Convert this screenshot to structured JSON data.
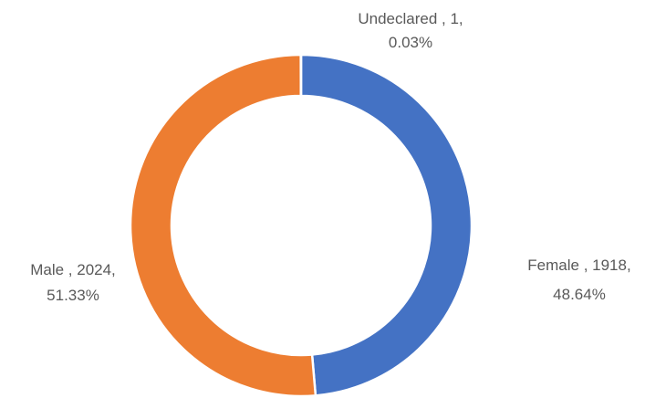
{
  "chart_data": {
    "type": "donut",
    "values": [
      1918,
      2024,
      1
    ],
    "value_labels": [
      [
        "Female , 1918,",
        "48.64%"
      ],
      [
        "Male , 2024,",
        "51.33%"
      ],
      [
        "Undeclared , 1,",
        "0.03%"
      ]
    ],
    "colors": [
      "#4472c4",
      "#ed7d31",
      "#a5a5a5"
    ]
  }
}
